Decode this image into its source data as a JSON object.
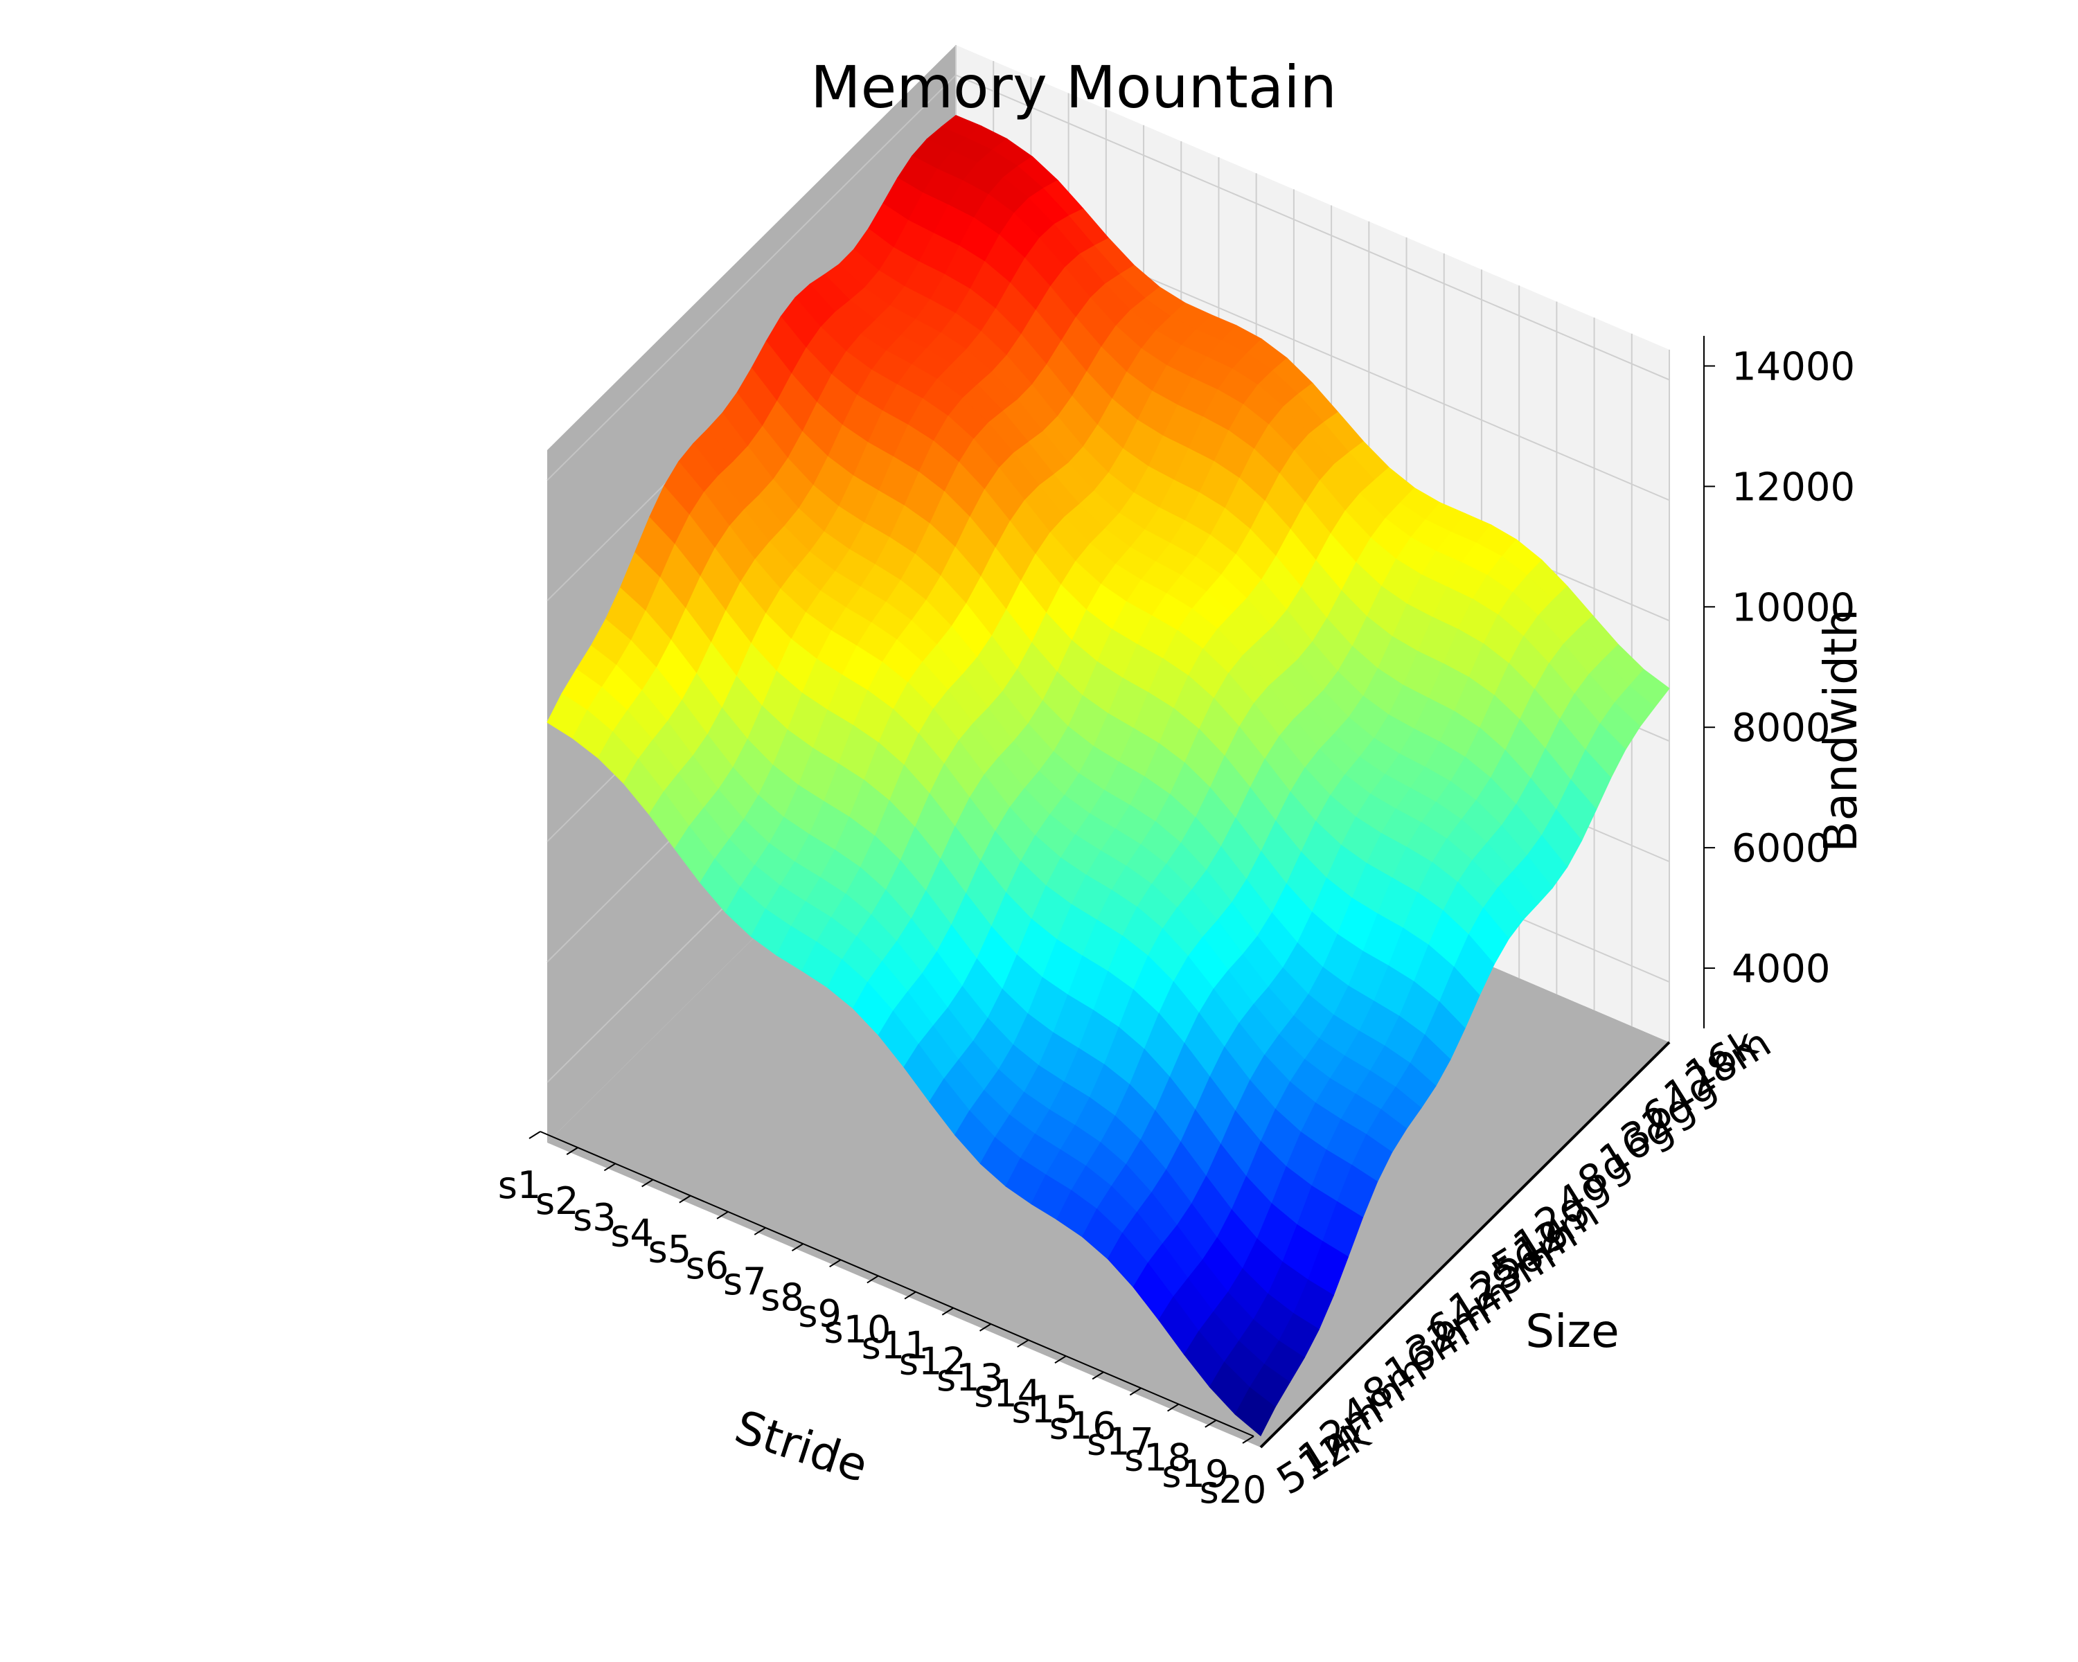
{
  "chart_data": {
    "type": "surface3d",
    "title": "Memory Mountain",
    "xlabel": "Stride",
    "ylabel": "Size",
    "zlabel": "Bandwidth",
    "x_ticks": [
      "s1",
      "s2",
      "s3",
      "s4",
      "s5",
      "s6",
      "s7",
      "s8",
      "s9",
      "s10",
      "s11",
      "s12",
      "s13",
      "s14",
      "s15",
      "s16",
      "s17",
      "s18",
      "s19",
      "s20"
    ],
    "y_ticks": [
      "512k",
      "1m",
      "2m",
      "4m",
      "8m",
      "16m",
      "32m",
      "64m",
      "128m",
      "256m",
      "512m",
      "1g",
      "2g",
      "4g",
      "8g",
      "16g",
      "32g",
      "64g",
      "128m",
      "16k"
    ],
    "z_ticks": [
      4000,
      6000,
      8000,
      10000,
      12000,
      14000
    ],
    "zlim": [
      3000,
      14500
    ],
    "colormap": "jet",
    "grid": true,
    "surface_corners": {
      "s1_small_size": 9800,
      "s1_large_size": 13500,
      "s20_small_size": 3200,
      "s20_large_size": 9200
    },
    "colors": {
      "pane_left": "#b0b0b0",
      "pane_floor": "#b0b0b0",
      "pane_back": "#f2f2f2",
      "grid": "#cfcfcf"
    }
  }
}
